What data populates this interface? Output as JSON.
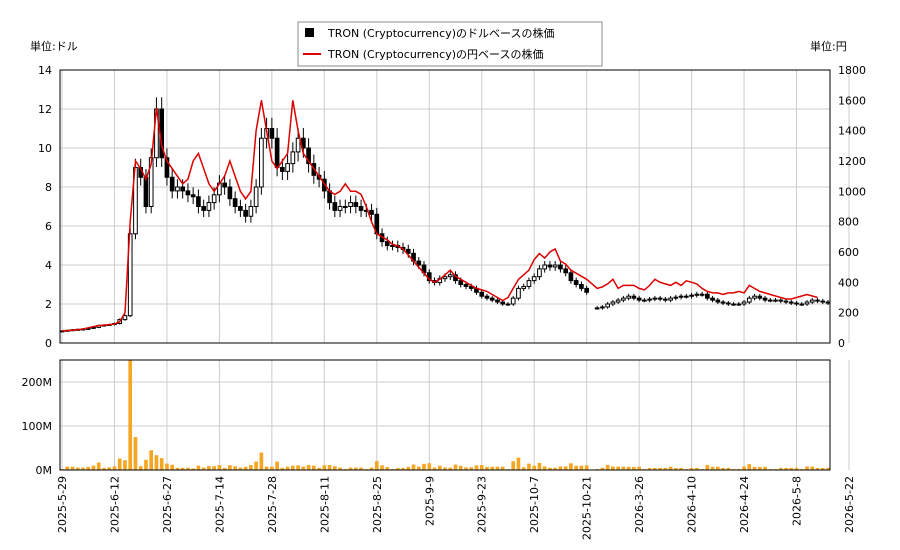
{
  "chart_data": {
    "type": "candlestick",
    "legend": {
      "placement": "top-center",
      "entries": [
        {
          "label": "TRON (Cryptocurrency)のドルベースの株価",
          "color": "#000000",
          "marker": "square"
        },
        {
          "label": "TRON (Cryptocurrency)の円ベースの株価",
          "color": "#dd0000",
          "marker": "line"
        }
      ]
    },
    "left_axis": {
      "unit_label": "単位:ドル",
      "ylim": [
        0,
        14
      ],
      "ticks": [
        "0",
        "2",
        "4",
        "6",
        "8",
        "10",
        "12",
        "14"
      ],
      "tick_values": [
        0,
        2,
        4,
        6,
        8,
        10,
        12,
        14
      ]
    },
    "right_axis": {
      "unit_label": "単位:円",
      "ylim": [
        0,
        1800
      ],
      "ticks": [
        "0",
        "200",
        "400",
        "600",
        "800",
        "1000",
        "1200",
        "1400",
        "1600",
        "1800"
      ],
      "tick_values": [
        0,
        200,
        400,
        600,
        800,
        1000,
        1200,
        1400,
        1600,
        1800
      ]
    },
    "volume_axis": {
      "ylim": [
        0,
        250000000
      ],
      "ticks": [
        "0M",
        "100M",
        "200M"
      ],
      "tick_values": [
        0,
        100000000,
        200000000
      ]
    },
    "x_axis": {
      "ticks": [
        "2025-5-29",
        "2025-6-12",
        "2025-6-27",
        "2025-7-14",
        "2025-7-28",
        "2025-8-11",
        "2025-8-25",
        "2025-9-9",
        "2025-9-23",
        "2025-10-7",
        "2025-10-21",
        "2026-3-26",
        "2026-4-10",
        "2026-4-24",
        "2026-5-8",
        "2026-5-22"
      ],
      "tick_index": [
        0,
        10,
        20,
        30,
        40,
        50,
        60,
        70,
        80,
        90,
        100,
        110,
        120,
        130,
        140,
        150
      ]
    },
    "grid": true,
    "usd_close": [
      0.62,
      0.65,
      0.68,
      0.7,
      0.72,
      0.75,
      0.8,
      0.9,
      0.92,
      0.95,
      1.0,
      1.2,
      1.4,
      5.6,
      9.0,
      8.5,
      7.0,
      9.5,
      12.0,
      9.5,
      8.5,
      7.8,
      8.0,
      7.8,
      7.6,
      7.5,
      7.0,
      6.8,
      7.2,
      7.6,
      8.2,
      8.0,
      7.4,
      7.0,
      6.8,
      6.5,
      7.0,
      8.0,
      10.5,
      11.0,
      10.5,
      9.0,
      8.8,
      9.2,
      9.8,
      10.5,
      10.0,
      9.2,
      8.6,
      8.4,
      7.8,
      7.2,
      6.8,
      7.0,
      7.0,
      7.2,
      7.0,
      6.8,
      6.8,
      6.6,
      5.6,
      5.2,
      5.0,
      5.0,
      4.9,
      4.8,
      4.6,
      4.2,
      4.0,
      3.6,
      3.2,
      3.1,
      3.3,
      3.4,
      3.5,
      3.2,
      3.0,
      2.9,
      2.8,
      2.6,
      2.4,
      2.3,
      2.2,
      2.1,
      2.0,
      2.0,
      2.3,
      2.8,
      2.9,
      3.2,
      3.4,
      3.8,
      4.0,
      3.9,
      4.0,
      3.8,
      3.6,
      3.2,
      3.0,
      2.8,
      2.6,
      null,
      1.8,
      1.85,
      2.0,
      2.1,
      2.2,
      2.3,
      2.4,
      2.3,
      2.2,
      2.2,
      2.25,
      2.3,
      2.25,
      2.2,
      2.3,
      2.35,
      2.4,
      2.4,
      2.45,
      2.5,
      2.5,
      2.3,
      2.2,
      2.1,
      2.05,
      2.0,
      2.0,
      2.0,
      2.1,
      2.3,
      2.4,
      2.3,
      2.2,
      2.2,
      2.2,
      2.15,
      2.1,
      2.05,
      2.0,
      2.0,
      2.1,
      2.2,
      2.15,
      2.1,
      2.05
    ],
    "jpy_close": [
      80,
      82,
      85,
      88,
      92,
      100,
      108,
      115,
      118,
      120,
      125,
      140,
      200,
      800,
      1200,
      1150,
      1080,
      1180,
      1550,
      1300,
      1200,
      1150,
      1100,
      1050,
      1080,
      1200,
      1250,
      1150,
      1050,
      1000,
      1050,
      1100,
      1200,
      1100,
      1000,
      950,
      1000,
      1400,
      1600,
      1400,
      1200,
      1150,
      1200,
      1250,
      1600,
      1400,
      1250,
      1200,
      1150,
      1100,
      1050,
      1000,
      980,
      1000,
      1050,
      1000,
      1000,
      980,
      900,
      800,
      720,
      700,
      680,
      650,
      640,
      620,
      580,
      540,
      500,
      460,
      420,
      400,
      420,
      450,
      480,
      440,
      420,
      400,
      380,
      360,
      350,
      340,
      320,
      300,
      280,
      300,
      360,
      420,
      450,
      480,
      550,
      590,
      560,
      600,
      620,
      540,
      520,
      480,
      460,
      440,
      420,
      null,
      360,
      370,
      390,
      420,
      360,
      380,
      380,
      380,
      360,
      350,
      380,
      420,
      400,
      390,
      380,
      400,
      380,
      410,
      400,
      390,
      360,
      340,
      330,
      330,
      320,
      330,
      330,
      340,
      330,
      380,
      360,
      340,
      330,
      320,
      310,
      300,
      290,
      290,
      300,
      310,
      320,
      310,
      300
    ],
    "volume_note": "peak volume near 2025-6-13 ~250M"
  }
}
